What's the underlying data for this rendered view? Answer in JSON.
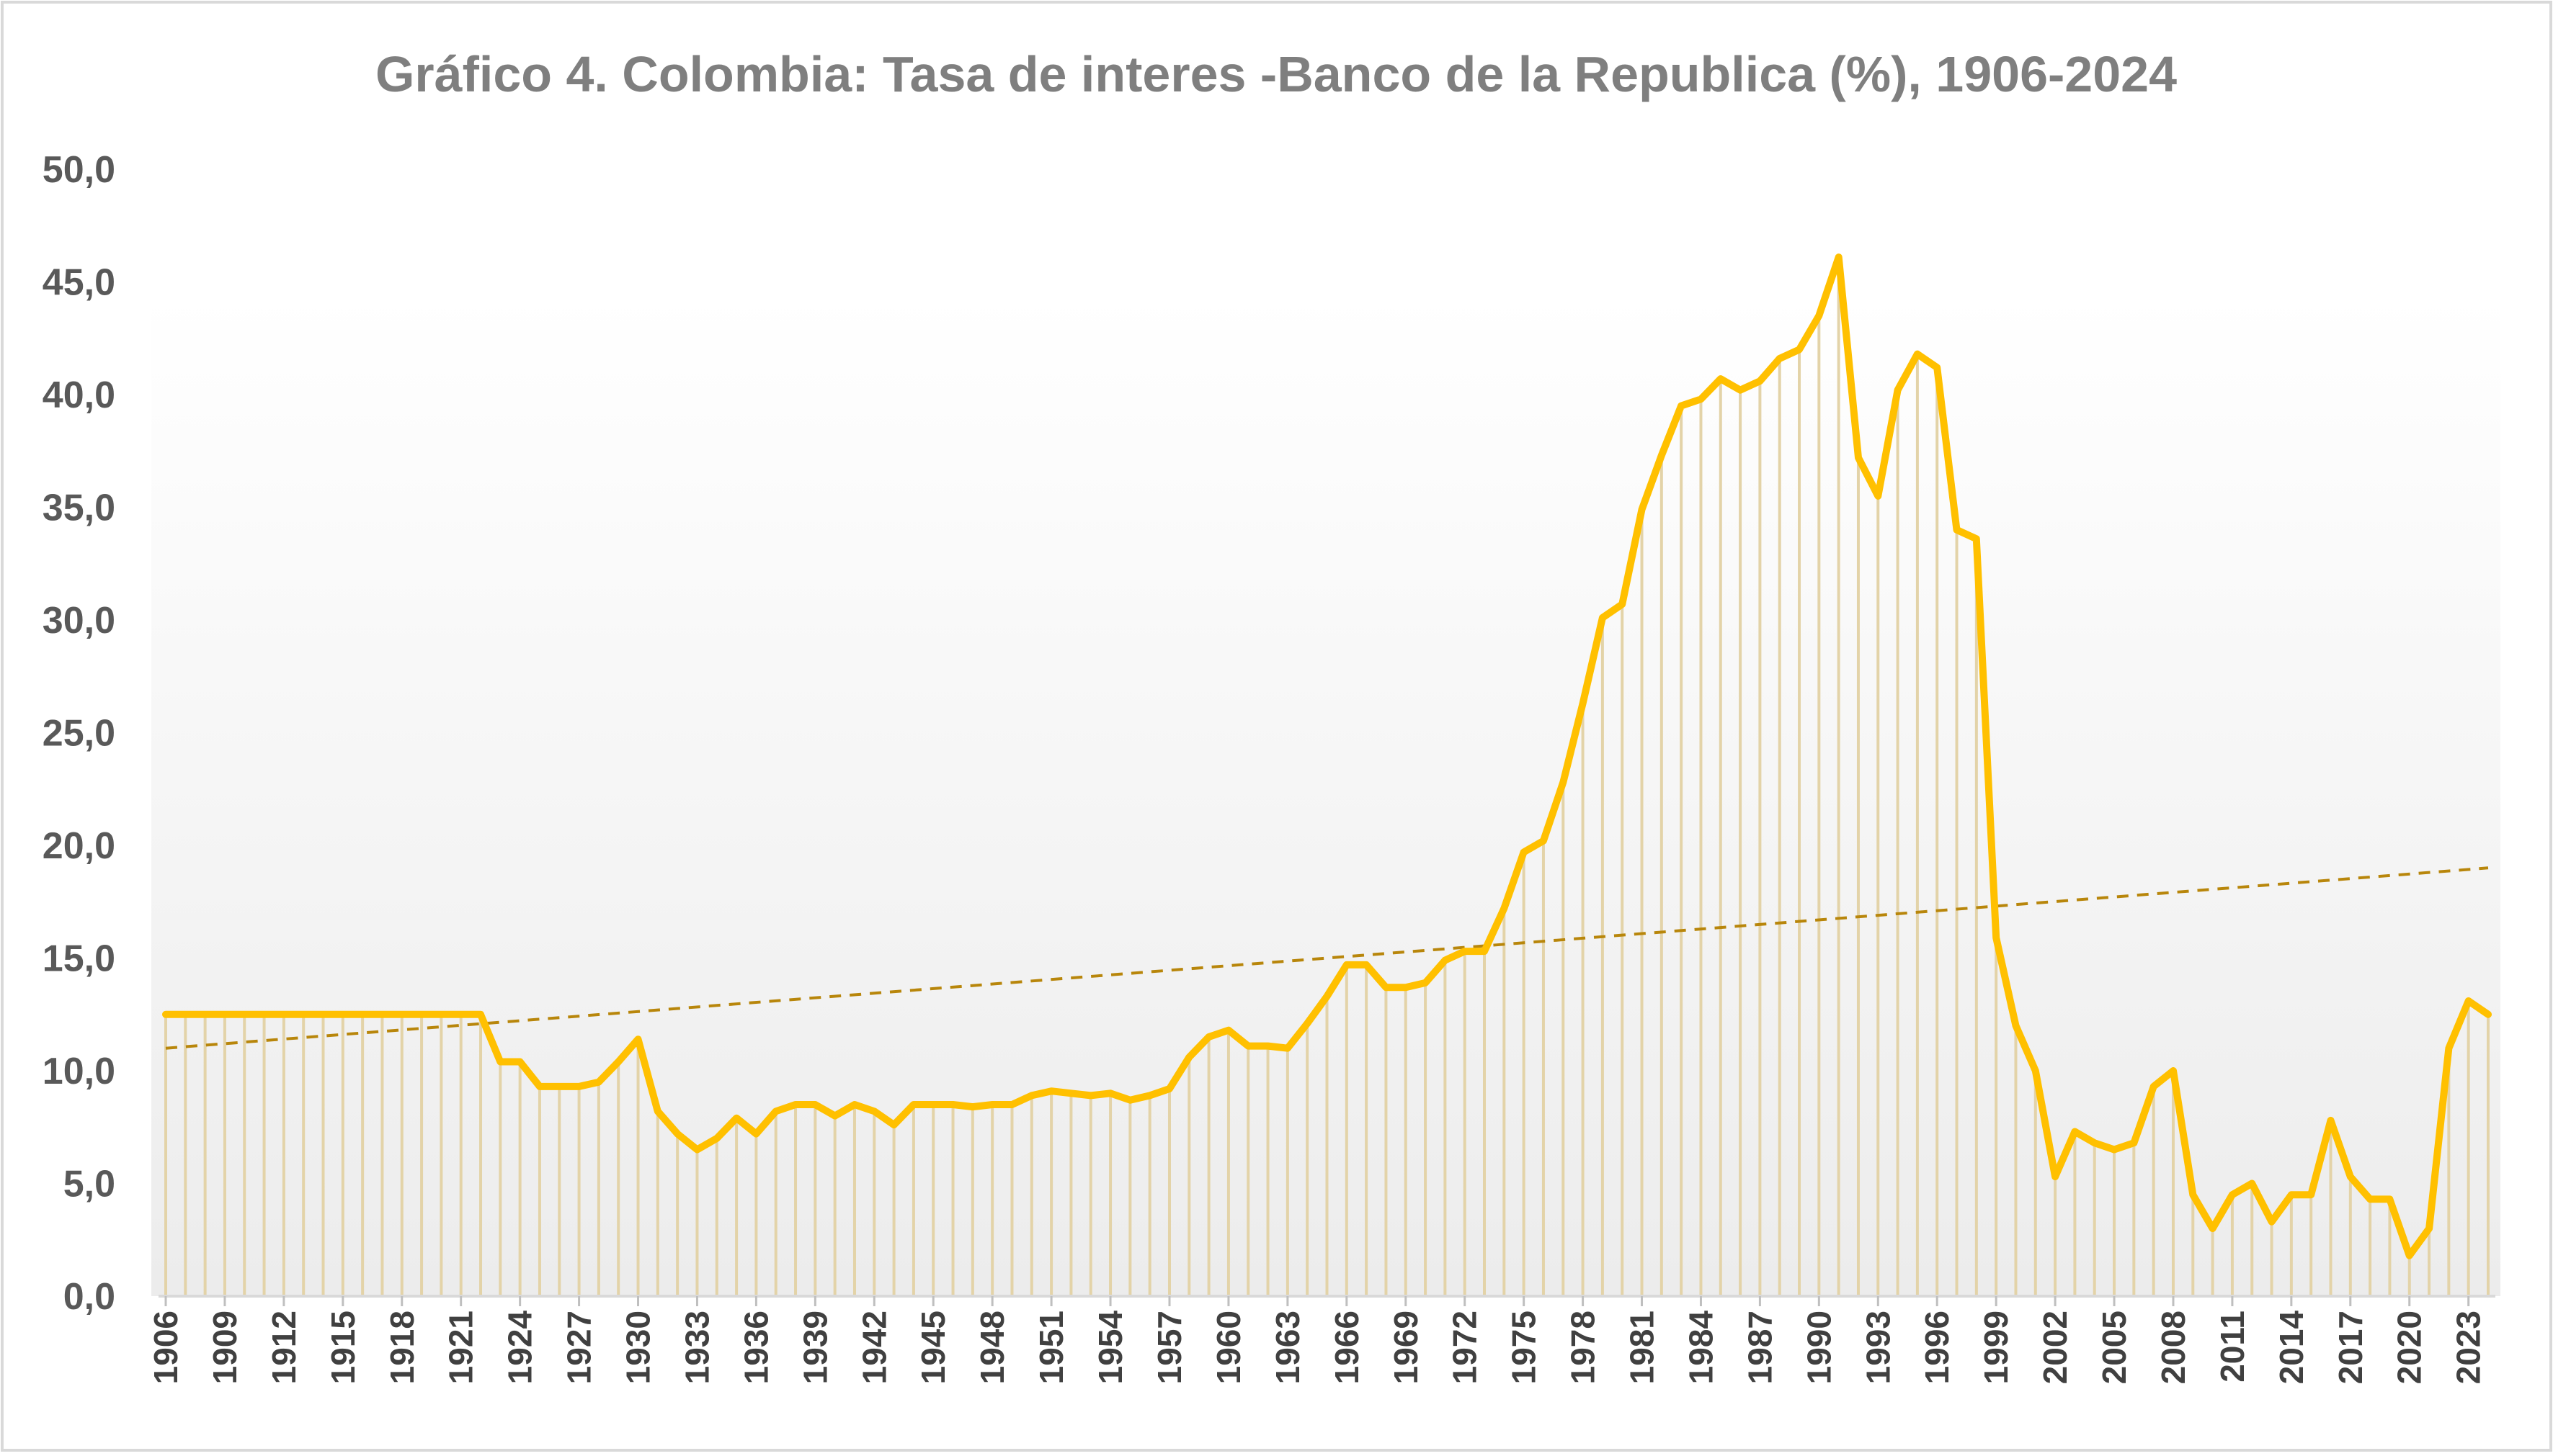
{
  "chart_data": {
    "type": "line",
    "title": "Gráfico 4. Colombia: Tasa de interes -Banco de la Republica (%), 1906-2024",
    "xlabel": "",
    "ylabel": "",
    "ylim": [
      0,
      50
    ],
    "yticks": [
      "0,0",
      "5,0",
      "10,0",
      "15,0",
      "20,0",
      "25,0",
      "30,0",
      "35,0",
      "40,0",
      "45,0",
      "50,0"
    ],
    "xtick_labels": [
      "1906",
      "1909",
      "1912",
      "1915",
      "1918",
      "1921",
      "1924",
      "1927",
      "1930",
      "1933",
      "1936",
      "1939",
      "1942",
      "1945",
      "1948",
      "1951",
      "1954",
      "1957",
      "1960",
      "1963",
      "1966",
      "1969",
      "1972",
      "1975",
      "1978",
      "1981",
      "1984",
      "1987",
      "1990",
      "1993",
      "1996",
      "1999",
      "2002",
      "2005",
      "2008",
      "2011",
      "2014",
      "2017",
      "2020",
      "2023"
    ],
    "grid": false,
    "drop_lines": true,
    "trendline": {
      "style": "dashed",
      "start": 11.0,
      "end": 19.0
    },
    "colors": {
      "line": "#FFC000",
      "drop": "#E3D3A8",
      "trend": "#B8860B",
      "title": "#7F7F7F",
      "bg_gradient_top": "#FFFFFF",
      "bg_gradient_bottom": "#EDEDED"
    },
    "series": [
      {
        "x": [
          1906,
          1907,
          1908,
          1909,
          1910,
          1911,
          1912,
          1913,
          1914,
          1915,
          1916,
          1917,
          1918,
          1919,
          1920,
          1921,
          1922,
          1923,
          1924,
          1925,
          1926,
          1927,
          1928,
          1929,
          1930,
          1931,
          1932,
          1933,
          1934,
          1935,
          1936,
          1937,
          1938,
          1939,
          1940,
          1941,
          1942,
          1943,
          1944,
          1945,
          1946,
          1947,
          1948,
          1949,
          1950,
          1951,
          1952,
          1953,
          1954,
          1955,
          1956,
          1957,
          1958,
          1959,
          1960,
          1961,
          1962,
          1963,
          1964,
          1965,
          1966,
          1967,
          1968,
          1969,
          1970,
          1971,
          1972,
          1973,
          1974,
          1975,
          1976,
          1977,
          1978,
          1979,
          1980,
          1981,
          1982,
          1983,
          1984,
          1985,
          1986,
          1987,
          1988,
          1989,
          1990,
          1991,
          1992,
          1993,
          1994,
          1995,
          1996,
          1997,
          1998,
          1999,
          2000,
          2001,
          2002,
          2003,
          2004,
          2005,
          2006,
          2007,
          2008,
          2009,
          2010,
          2011,
          2012,
          2013,
          2014,
          2015,
          2016,
          2017,
          2018,
          2019,
          2020,
          2021,
          2022,
          2023,
          2024
        ],
        "values": [
          12.5,
          12.5,
          12.5,
          12.5,
          12.5,
          12.5,
          12.5,
          12.5,
          12.5,
          12.5,
          12.5,
          12.5,
          12.5,
          12.5,
          12.5,
          12.5,
          12.5,
          10.4,
          10.4,
          9.3,
          9.3,
          9.3,
          9.5,
          10.4,
          11.4,
          8.2,
          7.2,
          6.5,
          7.0,
          7.9,
          7.2,
          8.2,
          8.5,
          8.5,
          8.0,
          8.5,
          8.2,
          7.6,
          8.5,
          8.5,
          8.5,
          8.4,
          8.5,
          8.5,
          8.9,
          9.1,
          9.0,
          8.9,
          9.0,
          8.7,
          8.9,
          9.2,
          10.6,
          11.5,
          11.8,
          11.1,
          11.1,
          11.0,
          12.1,
          13.3,
          14.7,
          14.7,
          13.7,
          13.7,
          13.9,
          14.9,
          15.3,
          15.3,
          17.2,
          19.7,
          20.2,
          22.8,
          26.3,
          30.1,
          30.7,
          34.9,
          37.3,
          39.5,
          39.8,
          40.7,
          40.2,
          40.6,
          41.6,
          42.0,
          43.5,
          46.1,
          37.2,
          35.5,
          40.2,
          41.8,
          41.2,
          34.0,
          33.6,
          15.9,
          12.0,
          10.0,
          5.3,
          7.3,
          6.8,
          6.5,
          6.8,
          9.3,
          10.0,
          4.5,
          3.0,
          4.5,
          5.0,
          3.3,
          4.5,
          4.5,
          7.8,
          5.3,
          4.3,
          4.3,
          1.8,
          3.0,
          11.0,
          13.1,
          12.5
        ]
      }
    ]
  }
}
